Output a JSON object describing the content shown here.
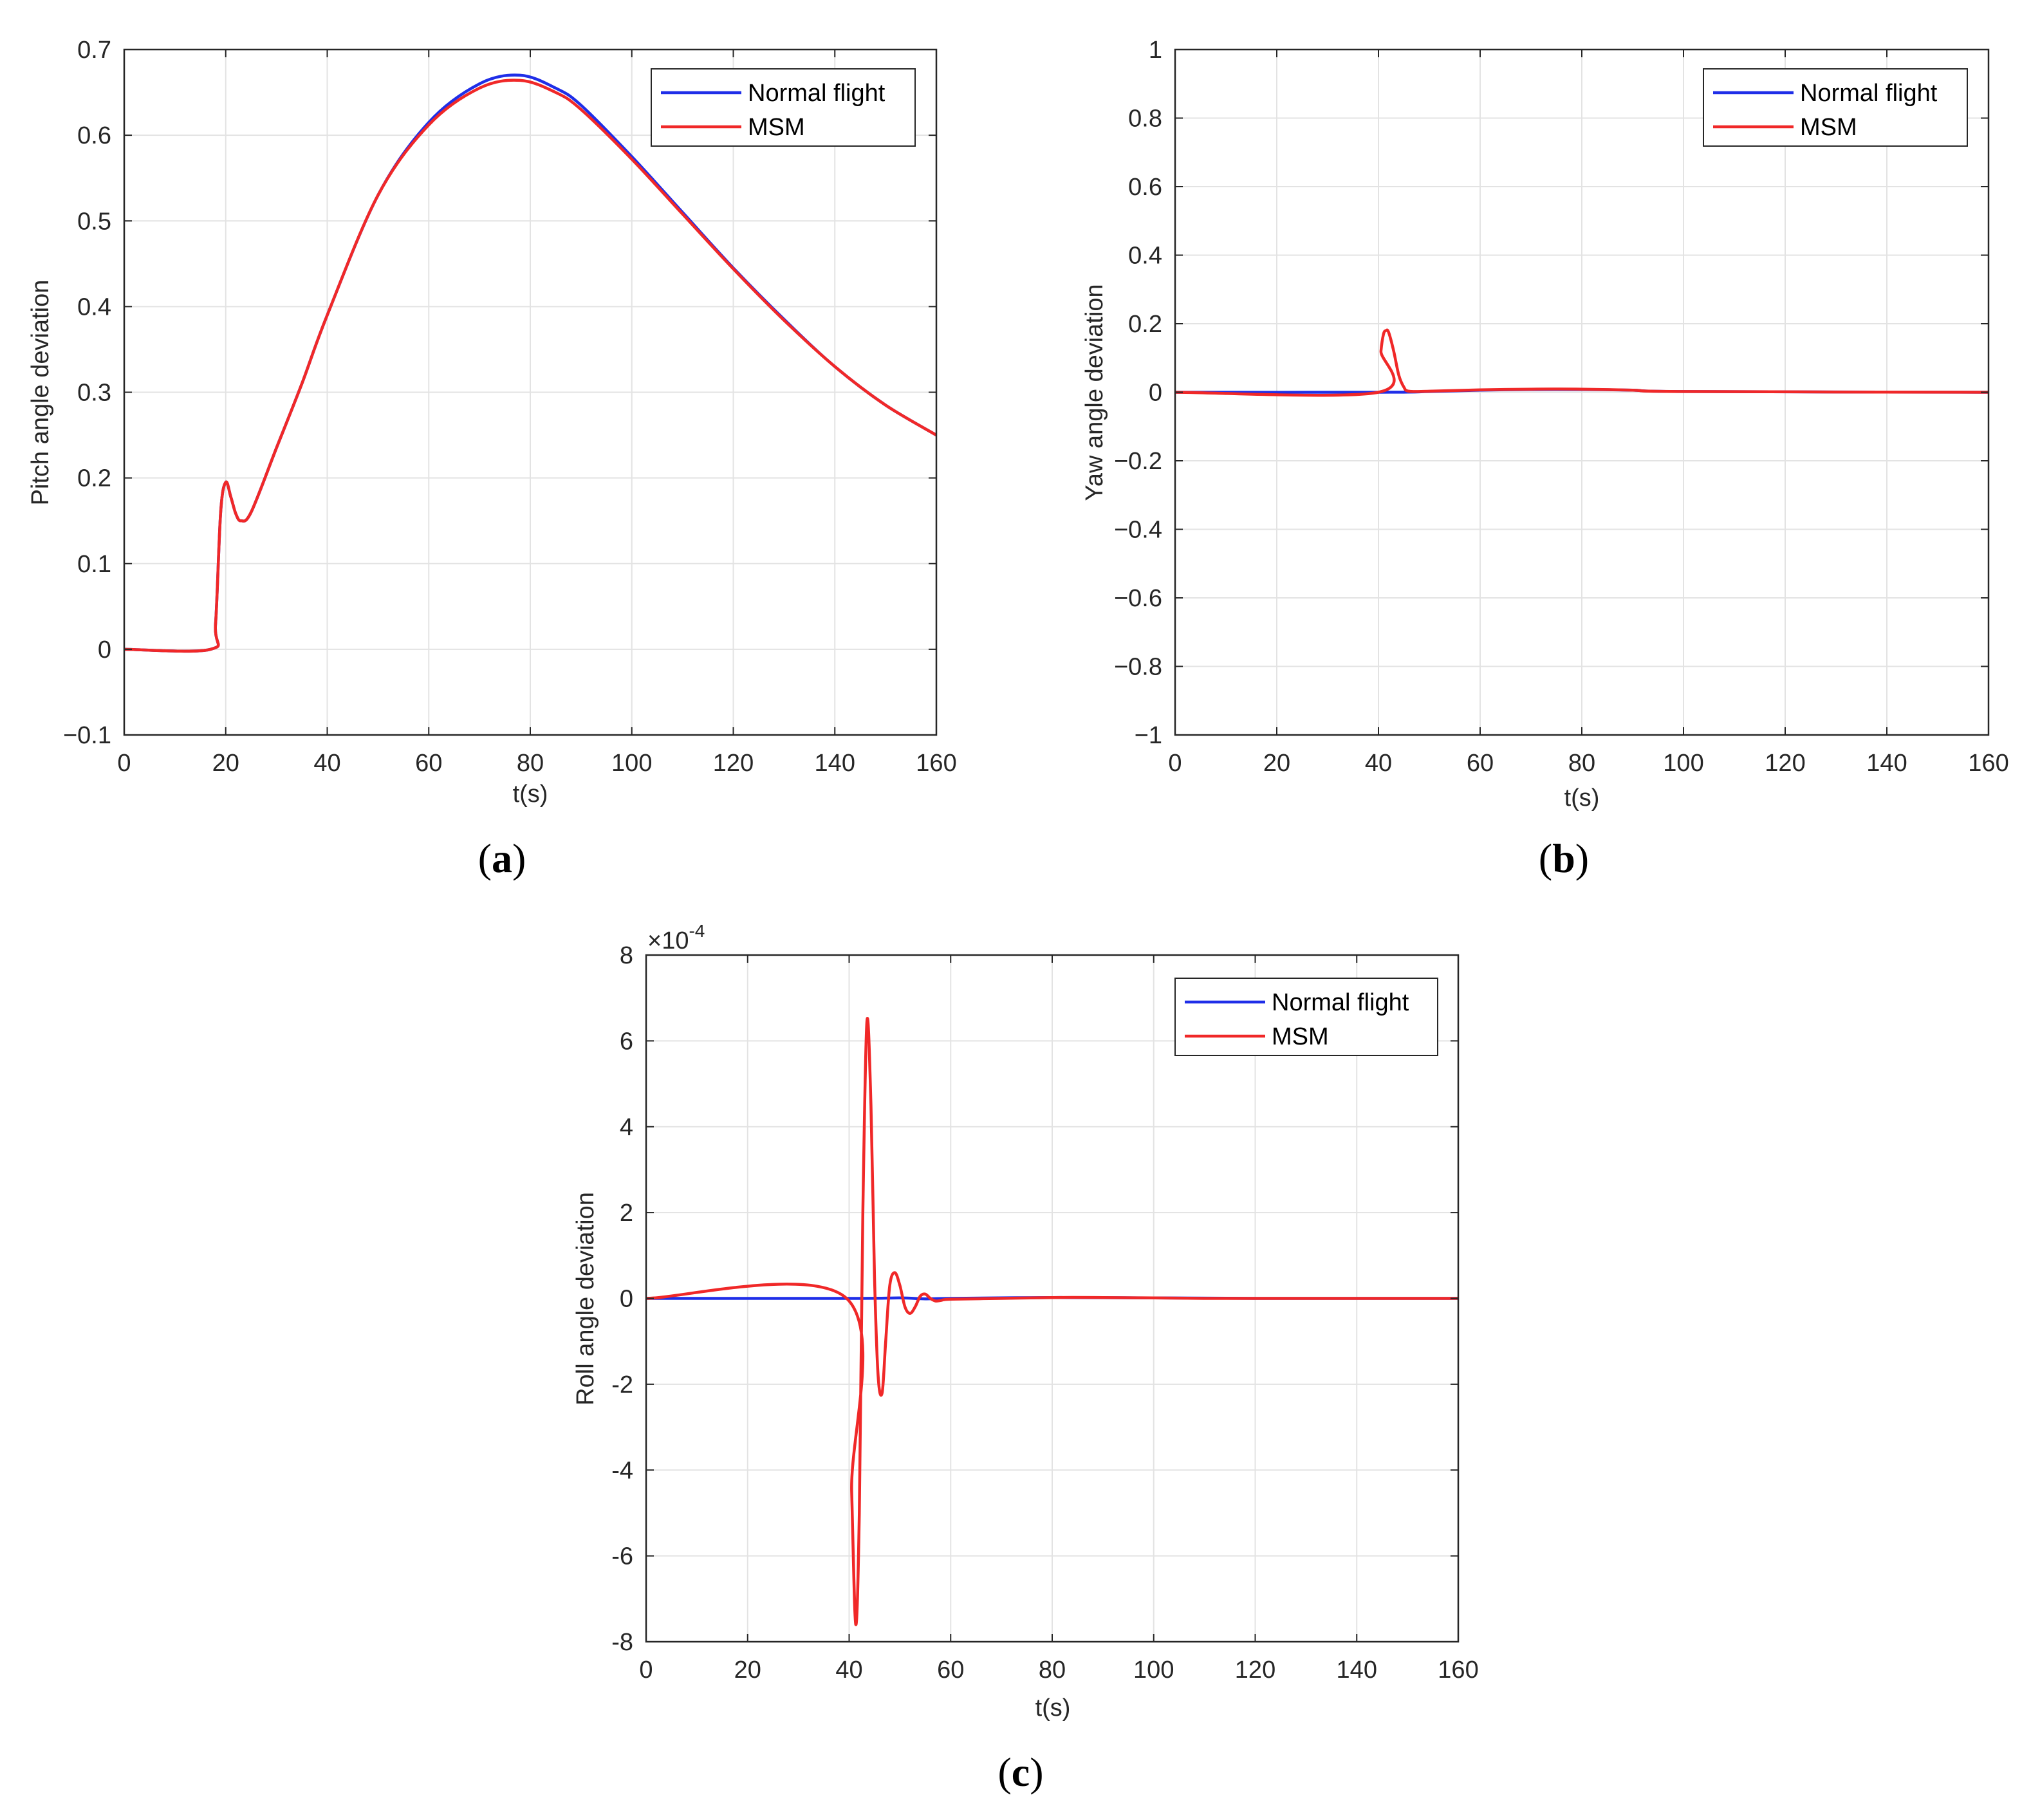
{
  "colors": {
    "normal": "#1f2ee8",
    "msm": "#f02828",
    "grid": "#e3e3e3",
    "axis": "#262626"
  },
  "legend": {
    "series_labels": [
      "Normal flight",
      "MSM"
    ],
    "placement": "top-right"
  },
  "chart_data": [
    {
      "id": "a",
      "type": "line",
      "caption_letter": "a",
      "xlabel": "t(s)",
      "ylabel": "Pitch angle deviation",
      "xlim": [
        0,
        160
      ],
      "ylim": [
        -0.1,
        0.7
      ],
      "xticks": [
        0,
        20,
        40,
        60,
        80,
        100,
        120,
        140,
        160
      ],
      "xtick_labels": [
        "0",
        "20",
        "40",
        "60",
        "80",
        "100",
        "120",
        "140",
        "160"
      ],
      "yticks": [
        -0.1,
        0,
        0.1,
        0.2,
        0.3,
        0.4,
        0.5,
        0.6,
        0.7
      ],
      "ytick_labels": [
        "−0.1",
        "0",
        "0.1",
        "0.2",
        "0.3",
        "0.4",
        "0.5",
        "0.6",
        "0.7"
      ],
      "grid": true,
      "series": [
        {
          "name": "Normal flight",
          "x": [
            0,
            17,
            18,
            19,
            20,
            21,
            22,
            23,
            25,
            30,
            35,
            40,
            50,
            60,
            70,
            78,
            85,
            90,
            100,
            110,
            120,
            130,
            140,
            150,
            160
          ],
          "y": [
            0,
            0,
            0.03,
            0.16,
            0.195,
            0.178,
            0.158,
            0.15,
            0.16,
            0.235,
            0.31,
            0.39,
            0.53,
            0.615,
            0.66,
            0.67,
            0.655,
            0.635,
            0.575,
            0.51,
            0.445,
            0.385,
            0.33,
            0.285,
            0.25
          ]
        },
        {
          "name": "MSM",
          "x": [
            0,
            17,
            18,
            19,
            20,
            21,
            22,
            23,
            25,
            30,
            35,
            40,
            50,
            60,
            70,
            78,
            85,
            90,
            100,
            110,
            120,
            130,
            140,
            150,
            160
          ],
          "y": [
            0,
            0,
            0.03,
            0.16,
            0.195,
            0.178,
            0.158,
            0.15,
            0.16,
            0.235,
            0.31,
            0.39,
            0.53,
            0.612,
            0.655,
            0.664,
            0.65,
            0.63,
            0.572,
            0.508,
            0.444,
            0.384,
            0.33,
            0.285,
            0.25
          ]
        }
      ]
    },
    {
      "id": "b",
      "type": "line",
      "caption_letter": "b",
      "xlabel": "t(s)",
      "ylabel": "Yaw angle deviation",
      "xlim": [
        0,
        160
      ],
      "ylim": [
        -1,
        1
      ],
      "xticks": [
        0,
        20,
        40,
        60,
        80,
        100,
        120,
        140,
        160
      ],
      "xtick_labels": [
        "0",
        "20",
        "40",
        "60",
        "80",
        "100",
        "120",
        "140",
        "160"
      ],
      "yticks": [
        -1,
        -0.8,
        -0.6,
        -0.4,
        -0.2,
        0,
        0.2,
        0.4,
        0.6,
        0.8,
        1
      ],
      "ytick_labels": [
        "−1",
        "−0.8",
        "−0.6",
        "−0.4",
        "−0.2",
        "0",
        "0.2",
        "0.4",
        "0.6",
        "0.8",
        "1"
      ],
      "grid": true,
      "series": [
        {
          "name": "Normal flight",
          "x": [
            0,
            40,
            50,
            60,
            70,
            80,
            90,
            100,
            160
          ],
          "y": [
            0,
            0,
            0.002,
            0.006,
            0.008,
            0.008,
            0.006,
            0.002,
            0
          ]
        },
        {
          "name": "MSM",
          "x": [
            0,
            40,
            40.5,
            41,
            41.5,
            42,
            43,
            44,
            45,
            46,
            50,
            60,
            70,
            80,
            90,
            100,
            160
          ],
          "y": [
            0,
            0,
            0.12,
            0.17,
            0.18,
            0.175,
            0.12,
            0.05,
            0.015,
            0.003,
            0.003,
            0.007,
            0.009,
            0.009,
            0.006,
            0.002,
            0
          ]
        }
      ]
    },
    {
      "id": "c",
      "type": "line",
      "caption_letter": "c",
      "xlabel": "t(s)",
      "ylabel": "Roll angle deviation",
      "xlim": [
        0,
        160
      ],
      "ylim": [
        -8,
        8
      ],
      "scale_base": "×10",
      "scale_exponent": "-4",
      "xticks": [
        0,
        20,
        40,
        60,
        80,
        100,
        120,
        140,
        160
      ],
      "xtick_labels": [
        "0",
        "20",
        "40",
        "60",
        "80",
        "100",
        "120",
        "140",
        "160"
      ],
      "yticks": [
        -8,
        -6,
        -4,
        -2,
        0,
        2,
        4,
        6,
        8
      ],
      "ytick_labels": [
        "-8",
        "-6",
        "-4",
        "-2",
        "0",
        "2",
        "4",
        "6",
        "8"
      ],
      "grid": true,
      "series": [
        {
          "name": "Normal flight",
          "x": [
            0,
            40,
            50,
            55,
            60,
            80,
            100,
            120,
            140,
            160
          ],
          "y": [
            0,
            0,
            0.01,
            -0.01,
            0,
            0.02,
            0.01,
            0,
            0,
            0
          ]
        },
        {
          "name": "MSM",
          "x": [
            0,
            39.5,
            40.5,
            41.3,
            42,
            42.7,
            43.5,
            44.3,
            45,
            45.7,
            46.5,
            47.2,
            48,
            49,
            50,
            51,
            52,
            53,
            54,
            55,
            56,
            57,
            58,
            60,
            70,
            80,
            90,
            100,
            110,
            120,
            130,
            140,
            150,
            160
          ],
          "y": [
            0,
            0,
            -4.5,
            -7.6,
            -5.0,
            2.0,
            6.45,
            4.5,
            0.5,
            -1.8,
            -2.2,
            -1.0,
            0.3,
            0.6,
            0.3,
            -0.2,
            -0.35,
            -0.2,
            0.05,
            0.1,
            0,
            -0.06,
            -0.05,
            -0.02,
            0,
            0.02,
            0.02,
            0.01,
            0,
            0,
            0,
            0,
            0,
            0
          ]
        }
      ]
    }
  ]
}
